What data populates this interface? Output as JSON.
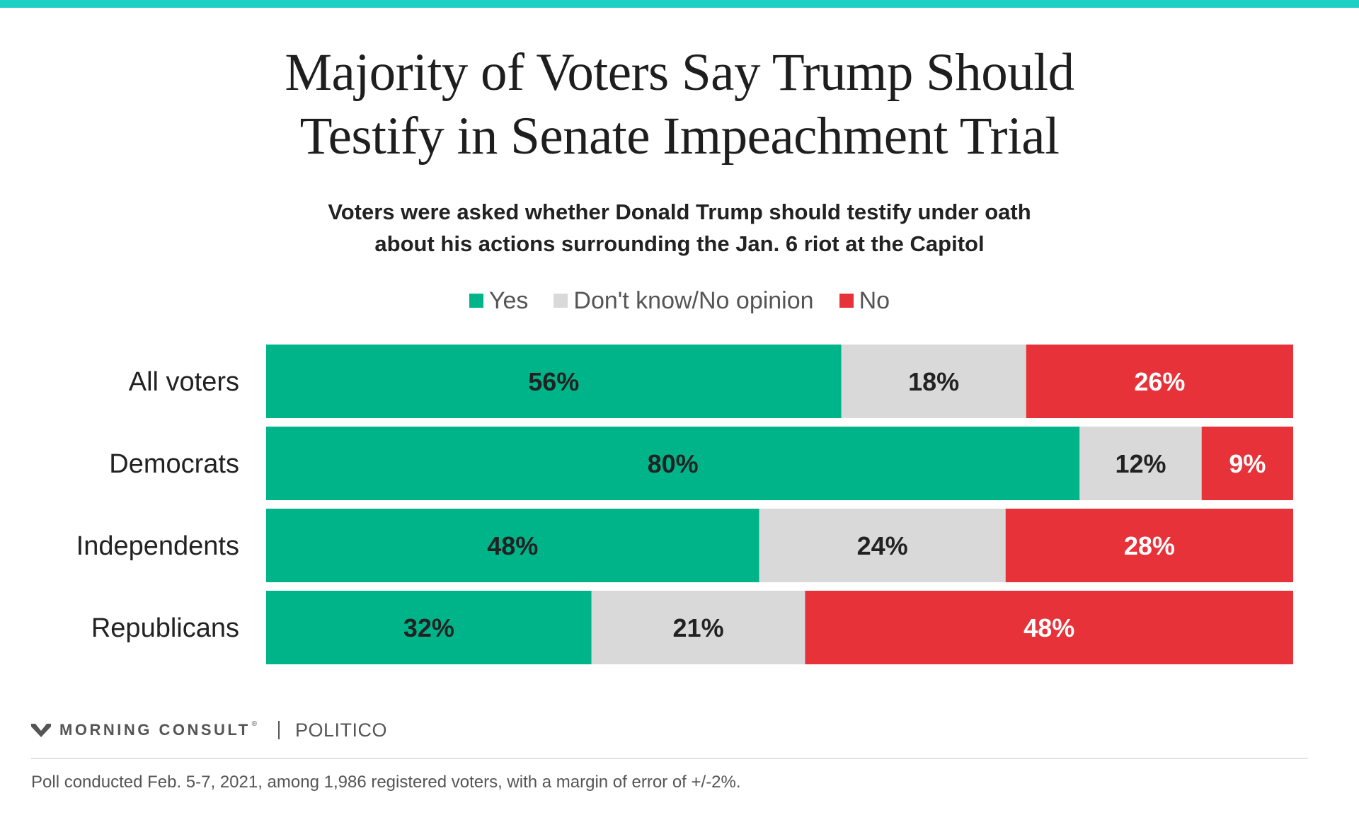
{
  "colors": {
    "top_bar": "#1ecfc3",
    "yes": "#00b48a",
    "dont_know": "#d9d9d9",
    "no": "#e8323a",
    "label_dark": "#222222",
    "label_light": "#ffffff"
  },
  "header": {
    "title_line1": "Majority of Voters Say Trump Should",
    "title_line2": "Testify in Senate Impeachment Trial",
    "subtitle_line1": "Voters were asked whether Donald Trump should testify under oath",
    "subtitle_line2": "about his actions surrounding the Jan. 6 riot at the Capitol"
  },
  "legend": [
    {
      "label": "Yes",
      "color": "#00b48a"
    },
    {
      "label": "Don't know/No opinion",
      "color": "#d9d9d9"
    },
    {
      "label": "No",
      "color": "#e8323a"
    }
  ],
  "chart_data": {
    "type": "bar",
    "orientation": "horizontal",
    "stacked": true,
    "categories": [
      "All voters",
      "Democrats",
      "Independents",
      "Republicans"
    ],
    "series": [
      {
        "name": "Yes",
        "values": [
          56,
          80,
          48,
          32
        ],
        "color": "#00b48a",
        "label_color": "#222222"
      },
      {
        "name": "Don't know/No opinion",
        "values": [
          18,
          12,
          24,
          21
        ],
        "color": "#d9d9d9",
        "label_color": "#222222"
      },
      {
        "name": "No",
        "values": [
          26,
          9,
          28,
          48
        ],
        "color": "#e8323a",
        "label_color": "#ffffff"
      }
    ],
    "value_suffix": "%",
    "legend_position": "top-center",
    "grid": false
  },
  "footer": {
    "brand_name": "MORNING CONSULT",
    "brand_mark": "®",
    "partner": "POLITICO",
    "note": "Poll conducted Feb. 5-7, 2021, among 1,986 registered voters, with a margin of error of +/-2%."
  }
}
